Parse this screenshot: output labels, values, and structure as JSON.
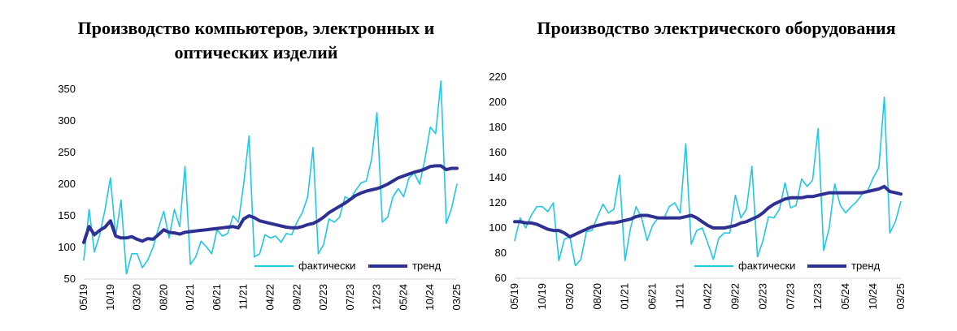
{
  "colors": {
    "actual": "#1ec8e6",
    "trend": "#2e3192",
    "grid": "#d9d9d9"
  },
  "chart_data": [
    {
      "type": "line",
      "title": "Производство компьютеров, электронных и оптических изделий",
      "ylim": [
        50,
        350
      ],
      "yticks": [
        50,
        100,
        150,
        200,
        250,
        300,
        350
      ],
      "xticks": [
        "05/19",
        "10/19",
        "03/20",
        "08/20",
        "01/21",
        "06/21",
        "11/21",
        "04/22",
        "09/22",
        "02/23",
        "07/23",
        "12/23",
        "05/24",
        "10/24",
        "03/25"
      ],
      "legend": {
        "actual": "фактически",
        "trend": "тренд",
        "placement": "bottom-right"
      },
      "grid": true,
      "series": [
        {
          "name": "фактически",
          "values": [
            80,
            160,
            93,
            120,
            160,
            210,
            118,
            175,
            58,
            90,
            90,
            68,
            80,
            100,
            130,
            157,
            115,
            160,
            133,
            228,
            73,
            85,
            110,
            101,
            90,
            128,
            118,
            122,
            150,
            140,
            200,
            276,
            85,
            90,
            120,
            115,
            118,
            108,
            122,
            120,
            140,
            155,
            180,
            258,
            90,
            105,
            145,
            140,
            148,
            180,
            176,
            190,
            202,
            205,
            240,
            313,
            140,
            148,
            180,
            193,
            180,
            210,
            218,
            200,
            240,
            290,
            280,
            363,
            138,
            162,
            200
          ]
        },
        {
          "name": "тренд",
          "values": [
            108,
            133,
            120,
            127,
            132,
            142,
            118,
            115,
            115,
            117,
            113,
            110,
            114,
            113,
            120,
            128,
            124,
            123,
            121,
            124,
            125,
            126,
            127,
            128,
            129,
            130,
            131,
            132,
            133,
            131,
            145,
            150,
            147,
            142,
            140,
            138,
            136,
            134,
            132,
            131,
            131,
            133,
            136,
            138,
            142,
            148,
            155,
            160,
            165,
            170,
            176,
            182,
            186,
            189,
            191,
            193,
            196,
            200,
            205,
            210,
            213,
            216,
            219,
            221,
            224,
            228,
            229,
            229,
            223,
            225,
            225
          ]
        }
      ]
    },
    {
      "type": "line",
      "title": "Производство электрического оборудования",
      "ylim": [
        60,
        220
      ],
      "yticks": [
        60,
        80,
        100,
        120,
        140,
        160,
        180,
        200,
        220
      ],
      "xticks": [
        "05/19",
        "10/19",
        "03/20",
        "08/20",
        "01/21",
        "06/21",
        "11/21",
        "04/22",
        "09/22",
        "02/23",
        "07/23",
        "12/23",
        "05/24",
        "10/24",
        "03/25"
      ],
      "legend": {
        "actual": "фактически",
        "trend": "тренд",
        "placement": "bottom-right"
      },
      "grid": true,
      "series": [
        {
          "name": "фактически",
          "values": [
            90,
            108,
            100,
            110,
            117,
            117,
            113,
            120,
            74,
            91,
            93,
            70,
            75,
            97,
            98,
            109,
            119,
            112,
            115,
            142,
            74,
            100,
            117,
            108,
            90,
            102,
            108,
            107,
            117,
            120,
            112,
            167,
            87,
            98,
            100,
            88,
            75,
            92,
            96,
            96,
            126,
            108,
            115,
            149,
            77,
            90,
            109,
            108,
            115,
            136,
            116,
            118,
            139,
            133,
            138,
            179,
            82,
            100,
            135,
            118,
            112,
            117,
            121,
            127,
            130,
            140,
            148,
            204,
            96,
            105,
            121
          ]
        },
        {
          "name": "тренд",
          "values": [
            105,
            105,
            104,
            104,
            103,
            101,
            99,
            98,
            98,
            96,
            93,
            95,
            97,
            99,
            101,
            102,
            103,
            104,
            104,
            105,
            106,
            107,
            109,
            110,
            110,
            109,
            108,
            108,
            108,
            108,
            108,
            109,
            110,
            108,
            105,
            102,
            100,
            100,
            100,
            101,
            102,
            104,
            105,
            107,
            109,
            112,
            116,
            119,
            121,
            123,
            124,
            124,
            124,
            125,
            125,
            126,
            127,
            128,
            128,
            128,
            128,
            128,
            128,
            128,
            129,
            130,
            131,
            133,
            129,
            128,
            127
          ]
        }
      ]
    }
  ]
}
